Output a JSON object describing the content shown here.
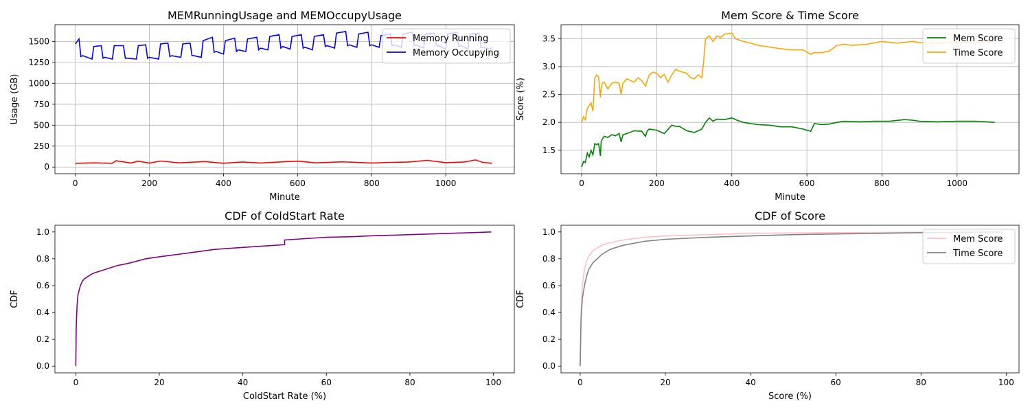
{
  "chart_data": [
    {
      "type": "line",
      "title": "MEMRunningUsage and MEMOccupyUsage",
      "xlabel": "Minute",
      "ylabel": "Usage (GB)",
      "xlim": [
        -55,
        1185
      ],
      "ylim": [
        -80,
        1700
      ],
      "xticks": [
        0,
        200,
        400,
        600,
        800,
        1000
      ],
      "yticks": [
        0,
        250,
        500,
        750,
        1000,
        1250,
        1500
      ],
      "grid": true,
      "legend_position": "upper right",
      "series": [
        {
          "name": "Memory Running",
          "color": "#ff0000",
          "x": [
            0,
            50,
            100,
            110,
            150,
            170,
            200,
            230,
            280,
            350,
            400,
            450,
            500,
            560,
            600,
            650,
            720,
            800,
            850,
            900,
            950,
            1000,
            1050,
            1080,
            1100,
            1125
          ],
          "y": [
            45,
            50,
            45,
            75,
            48,
            70,
            47,
            72,
            50,
            65,
            45,
            60,
            48,
            62,
            70,
            50,
            62,
            48,
            55,
            60,
            80,
            52,
            60,
            85,
            55,
            45
          ]
        },
        {
          "name": "Memory Occupying",
          "color": "#0000ff",
          "x": [
            0,
            10,
            15,
            20,
            45,
            50,
            70,
            75,
            80,
            100,
            105,
            130,
            135,
            140,
            165,
            170,
            190,
            195,
            200,
            225,
            230,
            250,
            255,
            260,
            285,
            290,
            310,
            315,
            320,
            340,
            345,
            370,
            375,
            380,
            400,
            405,
            430,
            435,
            440,
            460,
            465,
            490,
            495,
            500,
            520,
            525,
            550,
            555,
            560,
            580,
            585,
            610,
            615,
            620,
            640,
            645,
            670,
            675,
            680,
            700,
            705,
            730,
            735,
            740,
            760,
            765,
            790,
            795,
            800,
            820,
            825,
            850,
            855,
            860,
            880,
            885,
            910,
            915,
            920,
            940,
            945,
            970,
            975,
            980,
            1000,
            1005,
            1030,
            1035,
            1040,
            1060,
            1065,
            1090,
            1095,
            1100,
            1120,
            1125
          ],
          "y": [
            1470,
            1530,
            1320,
            1330,
            1290,
            1440,
            1450,
            1300,
            1310,
            1290,
            1450,
            1450,
            1300,
            1300,
            1290,
            1450,
            1460,
            1300,
            1310,
            1290,
            1470,
            1480,
            1320,
            1330,
            1310,
            1470,
            1480,
            1330,
            1330,
            1310,
            1510,
            1550,
            1370,
            1380,
            1350,
            1510,
            1540,
            1380,
            1400,
            1380,
            1530,
            1550,
            1400,
            1420,
            1400,
            1560,
            1580,
            1420,
            1440,
            1410,
            1560,
            1580,
            1420,
            1430,
            1400,
            1560,
            1580,
            1440,
            1450,
            1420,
            1600,
            1620,
            1450,
            1460,
            1430,
            1590,
            1610,
            1450,
            1460,
            1430,
            1570,
            1590,
            1450,
            1460,
            1430,
            1590,
            1610,
            1450,
            1460,
            1420,
            1590,
            1600,
            1450,
            1450,
            1410,
            1590,
            1610,
            1440,
            1450,
            1410,
            1590,
            1600,
            1430,
            1430,
            1410,
            1430
          ]
        }
      ]
    },
    {
      "type": "line",
      "title": "Mem Score & Time Score",
      "xlabel": "Minute",
      "ylabel": "Score (%)",
      "xlim": [
        -55,
        1165
      ],
      "ylim": [
        1.08,
        3.75
      ],
      "xticks": [
        0,
        200,
        400,
        600,
        800,
        1000
      ],
      "yticks": [
        1.5,
        2.0,
        2.5,
        3.0,
        3.5
      ],
      "grid": true,
      "legend_position": "upper right",
      "series": [
        {
          "name": "Mem Score",
          "color": "#008000",
          "x": [
            0,
            5,
            10,
            15,
            20,
            25,
            30,
            35,
            40,
            45,
            50,
            52,
            55,
            60,
            70,
            80,
            90,
            100,
            105,
            110,
            120,
            140,
            160,
            170,
            175,
            180,
            200,
            220,
            240,
            250,
            260,
            280,
            300,
            320,
            330,
            340,
            350,
            360,
            380,
            400,
            410,
            430,
            450,
            470,
            500,
            530,
            560,
            590,
            610,
            620,
            640,
            660,
            680,
            700,
            740,
            780,
            820,
            860,
            880,
            900,
            950,
            1000,
            1050,
            1100
          ],
          "y": [
            1.2,
            1.3,
            1.28,
            1.45,
            1.38,
            1.5,
            1.42,
            1.62,
            1.6,
            1.62,
            1.4,
            1.65,
            1.7,
            1.75,
            1.73,
            1.78,
            1.76,
            1.8,
            1.65,
            1.78,
            1.8,
            1.85,
            1.84,
            1.75,
            1.85,
            1.88,
            1.86,
            1.8,
            1.95,
            1.93,
            1.93,
            1.85,
            1.82,
            1.88,
            2.0,
            2.08,
            2.02,
            2.06,
            2.05,
            2.08,
            2.05,
            2.0,
            1.98,
            1.96,
            1.95,
            1.92,
            1.92,
            1.88,
            1.84,
            1.98,
            1.96,
            1.97,
            2.0,
            2.02,
            2.01,
            2.02,
            2.02,
            2.05,
            2.04,
            2.02,
            2.01,
            2.02,
            2.02,
            2.0
          ]
        },
        {
          "name": "Time Score",
          "color": "#ffa500",
          "x": [
            0,
            5,
            10,
            15,
            20,
            25,
            30,
            35,
            40,
            45,
            50,
            52,
            55,
            60,
            70,
            80,
            90,
            100,
            105,
            110,
            120,
            140,
            150,
            160,
            170,
            180,
            190,
            200,
            210,
            220,
            230,
            240,
            250,
            260,
            270,
            280,
            290,
            300,
            310,
            320,
            325,
            330,
            340,
            350,
            360,
            370,
            380,
            400,
            410,
            430,
            450,
            470,
            500,
            530,
            560,
            590,
            610,
            620,
            640,
            660,
            680,
            700,
            720,
            760,
            800,
            840,
            880,
            900,
            950,
            1000,
            1050,
            1100
          ],
          "y": [
            2.0,
            2.1,
            2.05,
            2.25,
            2.3,
            2.35,
            2.2,
            2.8,
            2.85,
            2.82,
            2.45,
            2.6,
            2.7,
            2.72,
            2.6,
            2.7,
            2.72,
            2.7,
            2.5,
            2.7,
            2.78,
            2.72,
            2.8,
            2.75,
            2.65,
            2.85,
            2.9,
            2.88,
            2.8,
            2.86,
            2.72,
            2.85,
            2.95,
            2.92,
            2.9,
            2.88,
            2.8,
            2.78,
            2.85,
            2.8,
            3.1,
            3.5,
            3.55,
            3.45,
            3.55,
            3.52,
            3.58,
            3.6,
            3.5,
            3.45,
            3.42,
            3.38,
            3.35,
            3.32,
            3.3,
            3.3,
            3.22,
            3.25,
            3.25,
            3.28,
            3.38,
            3.4,
            3.38,
            3.4,
            3.45,
            3.42,
            3.45,
            3.43,
            3.42,
            3.44,
            3.43,
            3.45
          ]
        }
      ]
    },
    {
      "type": "line",
      "title": "CDF of ColdStart Rate",
      "xlabel": "ColdStart Rate (%)",
      "ylabel": "CDF",
      "xlim": [
        -5,
        105
      ],
      "ylim": [
        -0.05,
        1.05
      ],
      "xticks": [
        0,
        20,
        40,
        60,
        80,
        100
      ],
      "yticks": [
        0.0,
        0.2,
        0.4,
        0.6,
        0.8,
        1.0
      ],
      "grid": false,
      "series": [
        {
          "name": "",
          "color": "#800080",
          "x": [
            0,
            0.1,
            0.3,
            0.5,
            1.0,
            1.5,
            2,
            3,
            4,
            5,
            7,
            10,
            12.5,
            14.3,
            16.7,
            20,
            25,
            28.6,
            33.3,
            40,
            45,
            50,
            50,
            55,
            60,
            66.7,
            70,
            75,
            80,
            90,
            95,
            99.5
          ],
          "y": [
            0,
            0.3,
            0.45,
            0.53,
            0.59,
            0.63,
            0.65,
            0.67,
            0.69,
            0.7,
            0.72,
            0.75,
            0.765,
            0.78,
            0.8,
            0.815,
            0.835,
            0.85,
            0.87,
            0.885,
            0.895,
            0.905,
            0.94,
            0.95,
            0.96,
            0.965,
            0.97,
            0.975,
            0.98,
            0.99,
            0.995,
            1.0
          ]
        }
      ]
    },
    {
      "type": "line",
      "title": "CDF of Score",
      "xlabel": "Score (%)",
      "ylabel": "CDF",
      "xlim": [
        -4.5,
        103
      ],
      "ylim": [
        -0.05,
        1.05
      ],
      "xticks": [
        0,
        20,
        40,
        60,
        80,
        100
      ],
      "yticks": [
        0.0,
        0.2,
        0.4,
        0.6,
        0.8,
        1.0
      ],
      "grid": false,
      "legend_position": "upper right",
      "series": [
        {
          "name": "Mem Score",
          "color": "#ffc0cb",
          "x": [
            0,
            0.2,
            0.5,
            1,
            1.5,
            2,
            3,
            4,
            5,
            7,
            10,
            15,
            20,
            30,
            40,
            60,
            80,
            99
          ],
          "y": [
            0,
            0.4,
            0.6,
            0.72,
            0.78,
            0.82,
            0.86,
            0.88,
            0.9,
            0.92,
            0.94,
            0.96,
            0.97,
            0.98,
            0.99,
            0.995,
            0.998,
            1.0
          ]
        },
        {
          "name": "Time Score",
          "color": "#808080",
          "x": [
            0,
            0.2,
            0.5,
            1,
            1.5,
            2,
            3,
            4,
            5,
            7,
            10,
            15,
            20,
            30,
            40,
            50,
            60,
            80,
            99
          ],
          "y": [
            0,
            0.35,
            0.5,
            0.6,
            0.67,
            0.72,
            0.77,
            0.8,
            0.83,
            0.87,
            0.9,
            0.93,
            0.945,
            0.96,
            0.97,
            0.98,
            0.985,
            0.995,
            1.0
          ]
        }
      ]
    }
  ]
}
